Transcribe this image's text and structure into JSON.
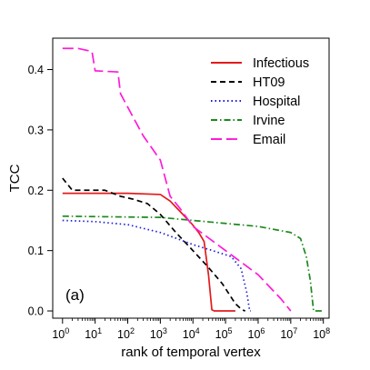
{
  "chart_data": {
    "type": "line",
    "panel_label": "(a)",
    "xlabel": "rank of temporal vertex",
    "ylabel": "TCC",
    "xscale": "log",
    "xlim": [
      0.5,
      150000000
    ],
    "ylim": [
      -0.012,
      0.452
    ],
    "x_ticks": [
      {
        "value": 1,
        "base": "10",
        "exp": "0"
      },
      {
        "value": 10,
        "base": "10",
        "exp": "1"
      },
      {
        "value": 100,
        "base": "10",
        "exp": "2"
      },
      {
        "value": 1000,
        "base": "10",
        "exp": "3"
      },
      {
        "value": 10000,
        "base": "10",
        "exp": "4"
      },
      {
        "value": 100000,
        "base": "10",
        "exp": "5"
      },
      {
        "value": 1000000,
        "base": "10",
        "exp": "6"
      },
      {
        "value": 10000000,
        "base": "10",
        "exp": "7"
      },
      {
        "value": 100000000,
        "base": "10",
        "exp": "8"
      }
    ],
    "y_ticks": [
      {
        "value": 0.0,
        "label": "0.0"
      },
      {
        "value": 0.1,
        "label": "0.1"
      },
      {
        "value": 0.2,
        "label": "0.2"
      },
      {
        "value": 0.3,
        "label": "0.3"
      },
      {
        "value": 0.4,
        "label": "0.4"
      }
    ],
    "grid": false,
    "legend_position": "top-right",
    "series": [
      {
        "name": "Infectious",
        "color": "#e31a1c",
        "dash": "solid",
        "points": [
          [
            1,
            0.195
          ],
          [
            100,
            0.195
          ],
          [
            1000,
            0.193
          ],
          [
            2000,
            0.182
          ],
          [
            4000,
            0.165
          ],
          [
            9000,
            0.145
          ],
          [
            15000,
            0.13
          ],
          [
            22000,
            0.115
          ],
          [
            30000,
            0.06
          ],
          [
            38000,
            0.002
          ],
          [
            45000,
            0.0
          ],
          [
            200000,
            0.0
          ]
        ]
      },
      {
        "name": "HT09",
        "color": "#000000",
        "dash": "dashed",
        "points": [
          [
            1,
            0.22
          ],
          [
            2,
            0.2
          ],
          [
            20,
            0.2
          ],
          [
            60,
            0.19
          ],
          [
            150,
            0.185
          ],
          [
            400,
            0.178
          ],
          [
            1000,
            0.16
          ],
          [
            3000,
            0.13
          ],
          [
            10000,
            0.1
          ],
          [
            30000,
            0.072
          ],
          [
            80000,
            0.045
          ],
          [
            200000,
            0.012
          ],
          [
            320000,
            0.002
          ],
          [
            400000,
            0.0
          ]
        ]
      },
      {
        "name": "Hospital",
        "color": "#1a1adc",
        "dash": "dotted",
        "points": [
          [
            1,
            0.15
          ],
          [
            10,
            0.148
          ],
          [
            100,
            0.143
          ],
          [
            1000,
            0.13
          ],
          [
            4000,
            0.118
          ],
          [
            10000,
            0.11
          ],
          [
            40000,
            0.1
          ],
          [
            150000,
            0.09
          ],
          [
            300000,
            0.07
          ],
          [
            450000,
            0.03
          ],
          [
            550000,
            0.0
          ],
          [
            600000,
            0.0
          ]
        ]
      },
      {
        "name": "Irvine",
        "color": "#1b8a1b",
        "dash": "dashdot",
        "points": [
          [
            1,
            0.157
          ],
          [
            1000,
            0.155
          ],
          [
            10000,
            0.15
          ],
          [
            100000,
            0.145
          ],
          [
            1000000,
            0.14
          ],
          [
            10000000,
            0.13
          ],
          [
            20000000,
            0.12
          ],
          [
            30000000,
            0.09
          ],
          [
            40000000,
            0.05
          ],
          [
            50000000,
            0.0
          ],
          [
            90000000,
            0.0
          ]
        ]
      },
      {
        "name": "Email",
        "color": "#ff1ad9",
        "dash": "longdash",
        "points": [
          [
            1,
            0.435
          ],
          [
            3,
            0.435
          ],
          [
            8,
            0.43
          ],
          [
            10,
            0.398
          ],
          [
            50,
            0.396
          ],
          [
            60,
            0.36
          ],
          [
            150,
            0.32
          ],
          [
            300,
            0.29
          ],
          [
            1000,
            0.25
          ],
          [
            2000,
            0.19
          ],
          [
            4000,
            0.17
          ],
          [
            10000,
            0.14
          ],
          [
            100000,
            0.1
          ],
          [
            1000000,
            0.06
          ],
          [
            5000000,
            0.02
          ],
          [
            10000000,
            0.0
          ]
        ]
      }
    ]
  }
}
